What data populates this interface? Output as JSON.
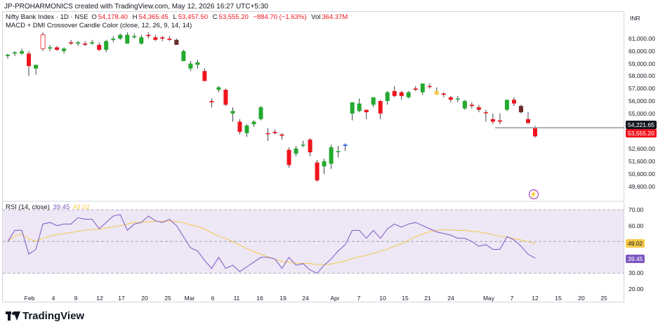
{
  "header": {
    "text": "JP-PROHARMONICS created with TradingView.com, May 12, 2026 16:27 UTC+5:30"
  },
  "main_pane": {
    "symbol": "Nifty Bank Index · 1D · NSE",
    "open_label": "O",
    "open": "54,178.40",
    "high_label": "H",
    "high": "54,365.45",
    "low_label": "L",
    "low": "53,457.50",
    "close_label": "C",
    "close": "53,555.20",
    "change": "−884.70 (−1.63%)",
    "vol_label": "Vol",
    "vol": "364.37M",
    "indicator": "MACD + DMI Crossover Candle Color (close, 12, 26, 9, 14, 14)",
    "currency": "INR",
    "price_ticks": [
      "61,000.00",
      "60,000.00",
      "59,000.00",
      "58,000.00",
      "57,000.00",
      "56,000.00",
      "55,000.00",
      "52,600.00",
      "51,600.00",
      "50,600.00",
      "49,600.00"
    ],
    "level_tag": "54,221.65",
    "last_price_tag": "53,555.20",
    "colors": {
      "up": "#089981",
      "green_candle": "#22ab2e",
      "down": "#f0141e",
      "yellow": "#f7c948",
      "dark": "#6b2a2a",
      "blue": "#2962ff",
      "level": "#9598a1"
    }
  },
  "rsi_pane": {
    "label": "RSI (14, close)",
    "rsi_value": "39.45",
    "ma_value": "49.02",
    "ticks": [
      "70.00",
      "60.00",
      "50.00",
      "40.00",
      "30.00",
      "20.00"
    ],
    "colors": {
      "rsi": "#7e57c2",
      "ma": "#f7c948",
      "band": "#ede7f6"
    }
  },
  "x_axis": {
    "labels": [
      "Feb",
      "4",
      "9",
      "12",
      "17",
      "20",
      "25",
      "Mar",
      "6",
      "11",
      "16",
      "19",
      "24",
      "Apr",
      "7",
      "10",
      "15",
      "21",
      "24",
      "May",
      "7",
      "12",
      "15",
      "20",
      "25"
    ]
  },
  "branding": {
    "name": "TradingView"
  },
  "chart_data": {
    "type": "candlestick",
    "title": "Nifty Bank Index · 1D · NSE",
    "x_labels": [
      "Feb",
      "4",
      "9",
      "12",
      "17",
      "20",
      "25",
      "Mar",
      "6",
      "11",
      "16",
      "19",
      "24",
      "Apr",
      "7",
      "10",
      "15",
      "21",
      "24",
      "May",
      "7",
      "12",
      "15",
      "20",
      "25"
    ],
    "ohlc_approx": [
      [
        59600,
        59800,
        59400,
        59700,
        "g"
      ],
      [
        59800,
        60000,
        59600,
        59900,
        "g"
      ],
      [
        60000,
        60200,
        59700,
        59800,
        "g"
      ],
      [
        59800,
        60000,
        58000,
        58800,
        "r"
      ],
      [
        58600,
        58900,
        58100,
        58900,
        "g"
      ],
      [
        60200,
        61500,
        60000,
        61300,
        "w"
      ],
      [
        60300,
        60500,
        60000,
        60200,
        "g"
      ],
      [
        60300,
        60400,
        60000,
        60100,
        "r"
      ],
      [
        60000,
        60300,
        59800,
        60200,
        "g"
      ],
      [
        60700,
        60900,
        60500,
        60600,
        "r"
      ],
      [
        60600,
        60800,
        60400,
        60700,
        "g"
      ],
      [
        60600,
        60800,
        60400,
        60500,
        "r"
      ],
      [
        60600,
        60900,
        60500,
        60700,
        "g"
      ],
      [
        60500,
        60700,
        60000,
        60100,
        "r"
      ],
      [
        60100,
        60900,
        59900,
        60800,
        "g"
      ],
      [
        60900,
        61200,
        60700,
        61000,
        "g"
      ],
      [
        61000,
        61400,
        60900,
        61300,
        "g"
      ],
      [
        61300,
        61500,
        60600,
        60600,
        "g"
      ],
      [
        61100,
        61400,
        61000,
        61200,
        "g"
      ],
      [
        61100,
        61300,
        60500,
        60600,
        "g"
      ],
      [
        61200,
        61500,
        61000,
        61300,
        "r"
      ],
      [
        61100,
        61300,
        60800,
        60900,
        "r"
      ],
      [
        61100,
        61200,
        60800,
        61000,
        "r"
      ],
      [
        61000,
        61200,
        60800,
        60900,
        "r"
      ],
      [
        60900,
        61000,
        60500,
        60500,
        "d"
      ],
      [
        60000,
        60100,
        59200,
        59200,
        "g"
      ],
      [
        59000,
        59200,
        58400,
        58600,
        "g"
      ],
      [
        58900,
        59300,
        58600,
        59100,
        "g"
      ],
      [
        58400,
        58600,
        57600,
        57600,
        "r"
      ],
      [
        56000,
        56200,
        55500,
        55900,
        "r"
      ],
      [
        56900,
        57200,
        56700,
        57100,
        "g"
      ],
      [
        56900,
        57000,
        55600,
        55700,
        "r"
      ],
      [
        55200,
        55500,
        54700,
        55000,
        "g"
      ],
      [
        54700,
        54900,
        53700,
        53900,
        "r"
      ],
      [
        53800,
        54500,
        53500,
        54400,
        "g"
      ],
      [
        54500,
        54800,
        54300,
        54700,
        "g"
      ],
      [
        54900,
        55600,
        54800,
        55500,
        "g"
      ],
      [
        53800,
        54200,
        53200,
        53800,
        "r"
      ],
      [
        53900,
        54100,
        53700,
        53800,
        "r"
      ],
      [
        53600,
        53800,
        53300,
        53700,
        "r"
      ],
      [
        52500,
        52700,
        51100,
        51300,
        "r"
      ],
      [
        52200,
        52800,
        52000,
        52600,
        "g"
      ],
      [
        52900,
        53200,
        52700,
        52900,
        "g"
      ],
      [
        53300,
        53400,
        52000,
        52300,
        "r"
      ],
      [
        51500,
        51700,
        50000,
        50100,
        "r"
      ],
      [
        51200,
        51800,
        50600,
        51600,
        "g"
      ],
      [
        51400,
        52900,
        51000,
        52700,
        "g"
      ],
      [
        52400,
        52800,
        51900,
        52400,
        "g"
      ],
      [
        52800,
        53000,
        52400,
        52900,
        "b"
      ],
      [
        55000,
        55900,
        54800,
        55900,
        "g"
      ],
      [
        55800,
        56200,
        55100,
        55200,
        "g"
      ],
      [
        55100,
        55300,
        54900,
        55300,
        "r"
      ],
      [
        55700,
        56300,
        55500,
        56300,
        "g"
      ],
      [
        56000,
        56100,
        54900,
        55000,
        "r"
      ],
      [
        56000,
        56800,
        55700,
        56700,
        "g"
      ],
      [
        56800,
        57200,
        56300,
        56400,
        "r"
      ],
      [
        56400,
        56800,
        56100,
        56700,
        "r"
      ],
      [
        56300,
        56800,
        56200,
        56700,
        "g"
      ],
      [
        56900,
        57200,
        56800,
        57000,
        "r"
      ],
      [
        56700,
        57400,
        56500,
        57400,
        "g"
      ],
      [
        57200,
        57400,
        57000,
        57200,
        "r"
      ],
      [
        56800,
        57100,
        56500,
        56500,
        "y"
      ],
      [
        56500,
        56700,
        56300,
        56600,
        "r"
      ],
      [
        56100,
        56400,
        55900,
        56300,
        "r"
      ],
      [
        56200,
        56400,
        55900,
        56200,
        "g"
      ],
      [
        56000,
        56100,
        55300,
        55400,
        "g"
      ],
      [
        55600,
        55900,
        55400,
        55700,
        "r"
      ],
      [
        55500,
        55700,
        55100,
        55300,
        "r"
      ],
      [
        55100,
        55300,
        54700,
        55100,
        "r"
      ],
      [
        54900,
        55000,
        54500,
        54700,
        "r"
      ],
      [
        54800,
        55000,
        54500,
        54700,
        "r"
      ],
      [
        55300,
        56100,
        55200,
        56100,
        "g"
      ],
      [
        56100,
        56300,
        55600,
        55800,
        "r"
      ],
      [
        55600,
        55700,
        55000,
        55100,
        "d"
      ],
      [
        54900,
        55100,
        54500,
        54600,
        "r"
      ],
      [
        54178,
        54365,
        53457,
        53555,
        "r"
      ]
    ],
    "rsi": [
      50,
      57,
      57,
      42,
      45,
      61,
      62,
      60,
      61,
      61,
      65,
      64,
      64,
      58,
      62,
      66,
      67,
      57,
      61,
      62,
      66,
      63,
      62,
      64,
      60,
      53,
      46,
      44,
      38,
      33,
      40,
      33,
      35,
      31,
      34,
      37,
      40,
      40,
      39,
      33,
      40,
      35,
      36,
      32,
      30,
      35,
      39,
      44,
      48,
      57,
      57,
      52,
      57,
      52,
      58,
      61,
      59,
      61,
      62,
      60,
      58,
      56,
      55,
      54,
      52,
      52,
      50,
      47,
      48,
      45,
      45,
      53,
      51,
      47,
      42,
      39.45
    ],
    "rsi_ma_current": 49.02,
    "rsi_bands": [
      70,
      50,
      30
    ],
    "horizontal_level": 54221.65
  }
}
